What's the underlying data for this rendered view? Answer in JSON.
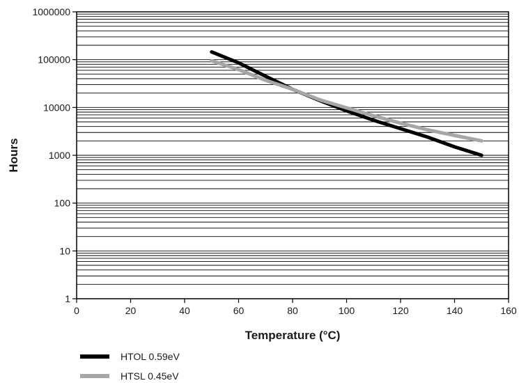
{
  "chart_data": {
    "type": "line",
    "title": "",
    "xlabel": "Temperature (°C)",
    "ylabel": "Hours",
    "xlim": [
      0,
      160
    ],
    "ylim": [
      1,
      1000000
    ],
    "yscale": "log",
    "x_ticks": [
      0,
      20,
      40,
      60,
      80,
      100,
      120,
      140,
      160
    ],
    "y_ticks": [
      1,
      10,
      100,
      1000,
      10000,
      100000,
      1000000
    ],
    "x_tick_labels": [
      "0",
      "20",
      "40",
      "60",
      "80",
      "100",
      "120",
      "140",
      "160"
    ],
    "y_tick_labels": [
      "1",
      "10",
      "100",
      "1000",
      "10000",
      "100000",
      "1000000"
    ],
    "grid": "horizontal minor (log)",
    "legend_position": "bottom-left",
    "series": [
      {
        "name": "HTOL 0.59eV",
        "color": "#000000",
        "x": [
          50,
          60,
          70,
          80,
          90,
          100,
          110,
          120,
          130,
          140,
          150
        ],
        "y": [
          145000,
          86000,
          45000,
          24000,
          14000,
          8500,
          5400,
          3600,
          2400,
          1500,
          1000
        ]
      },
      {
        "name": "HTSL 0.45eV",
        "color": "#a6a6a6",
        "x": [
          50,
          60,
          70,
          80,
          90,
          100,
          110,
          120,
          130,
          140,
          150
        ],
        "y": [
          95000,
          62000,
          37000,
          24000,
          14500,
          9800,
          6700,
          4700,
          3400,
          2600,
          2000
        ]
      }
    ]
  }
}
